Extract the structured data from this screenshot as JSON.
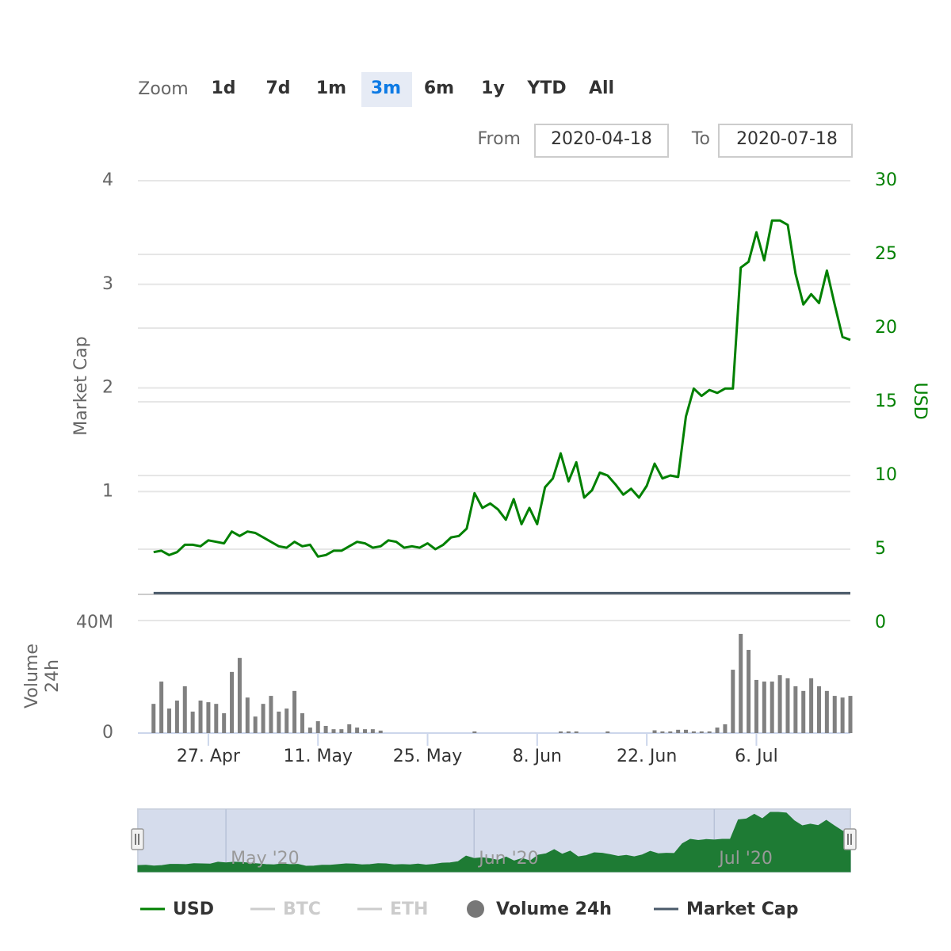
{
  "chart_data": {
    "type": "line",
    "zoom": {
      "label": "Zoom",
      "buttons": [
        "1d",
        "7d",
        "1m",
        "3m",
        "6m",
        "1y",
        "YTD",
        "All"
      ],
      "selected": "3m"
    },
    "range": {
      "from_label": "From",
      "from": "2020-04-18",
      "to_label": "To",
      "to": "2020-07-18"
    },
    "x": [
      "2020-04-20",
      "2020-04-21",
      "2020-04-22",
      "2020-04-23",
      "2020-04-24",
      "2020-04-25",
      "2020-04-26",
      "2020-04-27",
      "2020-04-28",
      "2020-04-29",
      "2020-04-30",
      "2020-05-01",
      "2020-05-02",
      "2020-05-03",
      "2020-05-04",
      "2020-05-05",
      "2020-05-06",
      "2020-05-07",
      "2020-05-08",
      "2020-05-09",
      "2020-05-10",
      "2020-05-11",
      "2020-05-12",
      "2020-05-13",
      "2020-05-14",
      "2020-05-15",
      "2020-05-16",
      "2020-05-17",
      "2020-05-18",
      "2020-05-19",
      "2020-05-20",
      "2020-05-21",
      "2020-05-22",
      "2020-05-23",
      "2020-05-24",
      "2020-05-25",
      "2020-05-26",
      "2020-05-27",
      "2020-05-28",
      "2020-05-29",
      "2020-05-30",
      "2020-05-31",
      "2020-06-01",
      "2020-06-02",
      "2020-06-03",
      "2020-06-04",
      "2020-06-05",
      "2020-06-06",
      "2020-06-07",
      "2020-06-08",
      "2020-06-09",
      "2020-06-10",
      "2020-06-11",
      "2020-06-12",
      "2020-06-13",
      "2020-06-14",
      "2020-06-15",
      "2020-06-16",
      "2020-06-17",
      "2020-06-18",
      "2020-06-19",
      "2020-06-20",
      "2020-06-21",
      "2020-06-22",
      "2020-06-23",
      "2020-06-24",
      "2020-06-25",
      "2020-06-26",
      "2020-06-27",
      "2020-06-28",
      "2020-06-29",
      "2020-06-30",
      "2020-07-01",
      "2020-07-02",
      "2020-07-03",
      "2020-07-04",
      "2020-07-05",
      "2020-07-06",
      "2020-07-07",
      "2020-07-08",
      "2020-07-09",
      "2020-07-10",
      "2020-07-11",
      "2020-07-12",
      "2020-07-13",
      "2020-07-14",
      "2020-07-15",
      "2020-07-16",
      "2020-07-17",
      "2020-07-18"
    ],
    "xlim": [
      "2020-04-18",
      "2020-07-18"
    ],
    "xticks": [
      {
        "value": "2020-04-27",
        "label": "27. Apr"
      },
      {
        "value": "2020-05-11",
        "label": "11. May"
      },
      {
        "value": "2020-05-25",
        "label": "25. May"
      },
      {
        "value": "2020-06-08",
        "label": "8. Jun"
      },
      {
        "value": "2020-06-22",
        "label": "22. Jun"
      },
      {
        "value": "2020-07-06",
        "label": "6. Jul"
      }
    ],
    "ylabel": "Market Cap",
    "ylim": [
      0,
      4
    ],
    "yticks": [
      1,
      2,
      3,
      4
    ],
    "y2label": "USD",
    "y2lim": [
      0,
      30
    ],
    "y2ticks": [
      0,
      5,
      10,
      15,
      20,
      25,
      30
    ],
    "y3label": "Volume 24h",
    "y3lim": [
      0,
      40000000
    ],
    "y3ticks": [
      0,
      {
        "value": 40000000,
        "label": "40M"
      }
    ],
    "grid": true,
    "series": [
      {
        "name": "USD",
        "color": "#008000",
        "axis": "y2",
        "values": [
          4.8,
          4.9,
          4.6,
          4.8,
          5.3,
          5.3,
          5.2,
          5.6,
          5.5,
          5.4,
          6.2,
          5.9,
          6.2,
          6.1,
          5.8,
          5.5,
          5.2,
          5.1,
          5.5,
          5.2,
          5.3,
          4.5,
          4.6,
          4.9,
          4.9,
          5.2,
          5.5,
          5.4,
          5.1,
          5.2,
          5.6,
          5.5,
          5.1,
          5.2,
          5.1,
          5.4,
          5.0,
          5.3,
          5.8,
          5.9,
          6.4,
          8.8,
          7.8,
          8.1,
          7.7,
          7.0,
          8.4,
          6.7,
          7.8,
          6.7,
          9.2,
          9.8,
          11.5,
          9.6,
          10.9,
          8.5,
          9.0,
          10.2,
          10.0,
          9.4,
          8.7,
          9.1,
          8.5,
          9.3,
          10.8,
          9.8,
          10.0,
          9.9,
          14.0,
          15.9,
          15.4,
          15.8,
          15.6,
          15.9,
          15.9,
          24.1,
          24.5,
          26.5,
          24.6,
          27.3,
          27.3,
          27.0,
          23.7,
          21.6,
          22.3,
          21.7,
          23.9,
          21.6,
          19.4,
          19.2
        ]
      },
      {
        "name": "BTC",
        "color": "#cccccc",
        "visible": false
      },
      {
        "name": "ETH",
        "color": "#cccccc",
        "visible": false
      },
      {
        "name": "Volume 24h",
        "color": "#808080",
        "type": "bar",
        "axis": "y3",
        "values": [
          10600000,
          18700000,
          8900000,
          11800000,
          17000000,
          7800000,
          11800000,
          11200000,
          10600000,
          7200000,
          22200000,
          27300000,
          12900000,
          6000000,
          10600000,
          13500000,
          7800000,
          8900000,
          15300000,
          7200000,
          2000000,
          4300000,
          2600000,
          1400000,
          1400000,
          3200000,
          2000000,
          1400000,
          1400000,
          900000,
          0,
          0,
          0,
          0,
          0,
          0,
          0,
          0,
          0,
          0,
          0,
          600000,
          0,
          0,
          0,
          0,
          0,
          0,
          0,
          0,
          0,
          0,
          600000,
          600000,
          600000,
          0,
          0,
          0,
          600000,
          0,
          0,
          0,
          0,
          0,
          1000000,
          600000,
          600000,
          1200000,
          1200000,
          600000,
          600000,
          600000,
          2000000,
          3200000,
          23000000,
          36000000,
          30200000,
          19300000,
          18700000,
          18700000,
          21000000,
          19900000,
          17000000,
          15300000,
          19900000,
          17000000,
          15300000,
          13500000,
          12900000,
          13500000
        ]
      },
      {
        "name": "Market Cap",
        "color": "#4a5a6a",
        "values": [
          0.02,
          0.02,
          0.02,
          0.02,
          0.02,
          0.02,
          0.02,
          0.02,
          0.02,
          0.02,
          0.02,
          0.02,
          0.02,
          0.02,
          0.02,
          0.02,
          0.02,
          0.02,
          0.02,
          0.02,
          0.02,
          0.02,
          0.02,
          0.02,
          0.02,
          0.02,
          0.02,
          0.02,
          0.02,
          0.02,
          0.02,
          0.02,
          0.02,
          0.02,
          0.02,
          0.02,
          0.02,
          0.02,
          0.02,
          0.02,
          0.02,
          0.02,
          0.02,
          0.02,
          0.02,
          0.02,
          0.02,
          0.02,
          0.02,
          0.02,
          0.02,
          0.02,
          0.02,
          0.02,
          0.02,
          0.02,
          0.02,
          0.02,
          0.02,
          0.02,
          0.02,
          0.02,
          0.02,
          0.02,
          0.02,
          0.02,
          0.02,
          0.02,
          0.02,
          0.02,
          0.02,
          0.02,
          0.02,
          0.02,
          0.02,
          0.02,
          0.02,
          0.02,
          0.02,
          0.02,
          0.02,
          0.02,
          0.02,
          0.02,
          0.02,
          0.02,
          0.02,
          0.02,
          0.02,
          0.02
        ]
      }
    ],
    "navigator": {
      "color": "#1e7b34",
      "xticks": [
        {
          "value": "2020-05-01",
          "label": "May '20"
        },
        {
          "value": "2020-06-01",
          "label": "Jun '20"
        },
        {
          "value": "2020-07-01",
          "label": "Jul '20"
        }
      ]
    }
  }
}
